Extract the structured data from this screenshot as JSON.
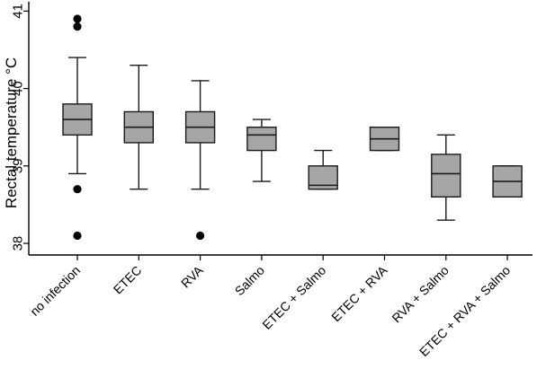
{
  "chart_data": {
    "type": "box",
    "title": "",
    "xlabel": "",
    "ylabel": "Rectal temperature °C",
    "ylim": [
      37.85,
      41.12
    ],
    "yticks": [
      38,
      39,
      40,
      41
    ],
    "ytick_labels": [
      "38",
      "39",
      "40",
      "41"
    ],
    "grid": false,
    "categories": [
      "no infection",
      "ETEC",
      "RVA",
      "Salmo",
      "ETEC + Salmo",
      "ETEC + RVA",
      "RVA + Salmo",
      "ETEC + RVA + Salmo"
    ],
    "boxes": [
      {
        "category": "no infection",
        "whisker_low": 38.9,
        "q1": 39.4,
        "median": 39.6,
        "q3": 39.8,
        "whisker_high": 40.4,
        "outliers": [
          40.9,
          40.8,
          38.7,
          38.1
        ]
      },
      {
        "category": "ETEC",
        "whisker_low": 38.7,
        "q1": 39.3,
        "median": 39.5,
        "q3": 39.7,
        "whisker_high": 40.3,
        "outliers": []
      },
      {
        "category": "RVA",
        "whisker_low": 38.7,
        "q1": 39.3,
        "median": 39.5,
        "q3": 39.7,
        "whisker_high": 40.1,
        "outliers": [
          38.1
        ]
      },
      {
        "category": "Salmo",
        "whisker_low": 38.8,
        "q1": 39.2,
        "median": 39.4,
        "q3": 39.5,
        "whisker_high": 39.6,
        "outliers": []
      },
      {
        "category": "ETEC + Salmo",
        "whisker_low": 38.7,
        "q1": 38.7,
        "median": 38.75,
        "q3": 39.0,
        "whisker_high": 39.2,
        "outliers": []
      },
      {
        "category": "ETEC + RVA",
        "whisker_low": 39.2,
        "q1": 39.2,
        "median": 39.35,
        "q3": 39.5,
        "whisker_high": 39.5,
        "outliers": []
      },
      {
        "category": "RVA + Salmo",
        "whisker_low": 38.3,
        "q1": 38.6,
        "median": 38.9,
        "q3": 39.15,
        "whisker_high": 39.4,
        "outliers": []
      },
      {
        "category": "ETEC + RVA + Salmo",
        "whisker_low": 38.6,
        "q1": 38.6,
        "median": 38.8,
        "q3": 39.0,
        "whisker_high": 39.0,
        "outliers": []
      }
    ],
    "colors": {
      "box_fill": "#a6a6a6",
      "line": "#1a1a1a",
      "outlier": "#000000",
      "background": "#ffffff"
    }
  }
}
